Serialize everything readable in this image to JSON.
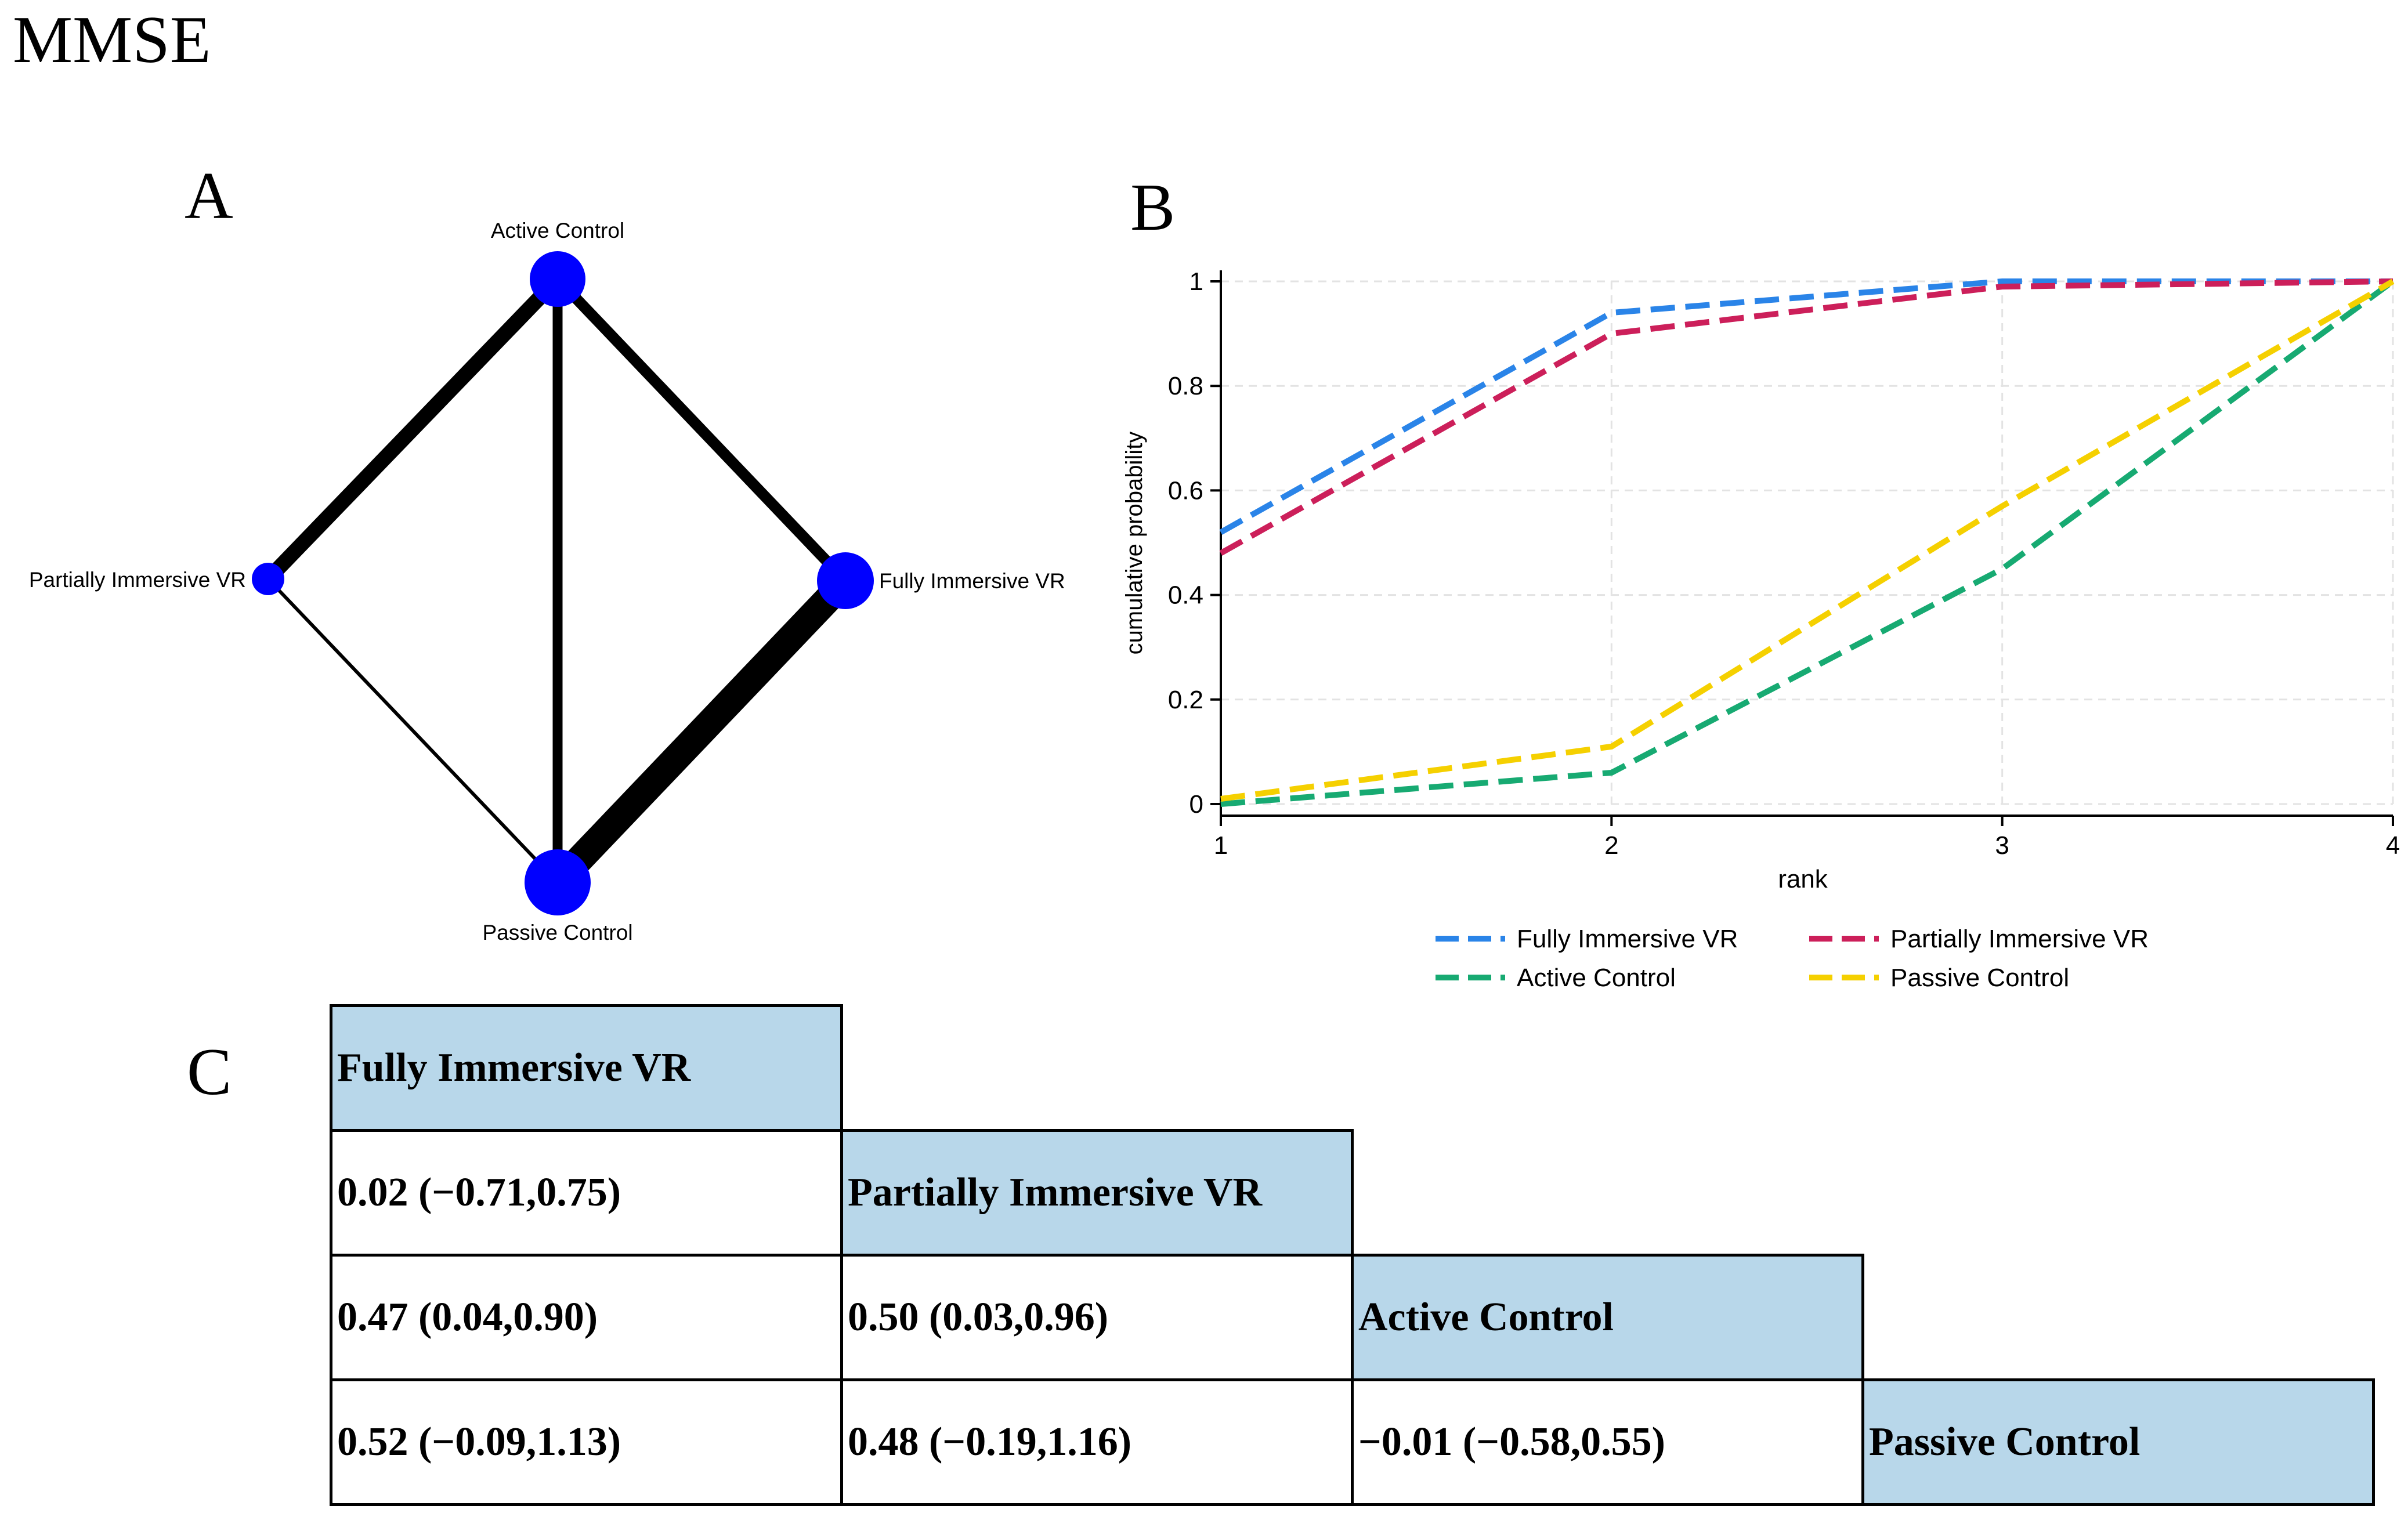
{
  "figure_title": "MMSE",
  "panels": {
    "a": "A",
    "b": "B",
    "c": "C"
  },
  "colors": {
    "node": "#0000ff",
    "edge": "#000000",
    "diag_fill": "#b8d7ea",
    "series": [
      "#2a84e8",
      "#cc1f5a",
      "#17aa72",
      "#f5d000"
    ]
  },
  "network": {
    "nodes": [
      {
        "name": "Active Control"
      },
      {
        "name": "Partially Immersive VR"
      },
      {
        "name": "Fully Immersive VR"
      },
      {
        "name": "Passive Control"
      }
    ]
  },
  "chart_data": {
    "type": "line",
    "title": "",
    "xlabel": "rank",
    "ylabel": "cumulative probability",
    "x": [
      1,
      2,
      3,
      4
    ],
    "xlim": [
      1,
      4
    ],
    "ylim": [
      0,
      1
    ],
    "xticks": [
      "1",
      "2",
      "3",
      "4"
    ],
    "yticks": [
      "0",
      "0.2",
      "0.4",
      "0.6",
      "0.8",
      "1"
    ],
    "grid": true,
    "legend_position": "bottom",
    "series": [
      {
        "name": "Fully Immersive VR",
        "values": [
          0.52,
          0.94,
          1.0,
          1.0
        ]
      },
      {
        "name": "Partially Immersive VR",
        "values": [
          0.48,
          0.9,
          0.99,
          1.0
        ]
      },
      {
        "name": "Active Control",
        "values": [
          0.0,
          0.06,
          0.45,
          1.0
        ]
      },
      {
        "name": "Passive Control",
        "values": [
          0.01,
          0.11,
          0.57,
          1.0
        ]
      }
    ]
  },
  "league_table": {
    "rows": [
      [
        "Fully Immersive VR",
        "",
        "",
        ""
      ],
      [
        "0.02 (−0.71,0.75)",
        "Partially Immersive VR",
        "",
        ""
      ],
      [
        "0.47 (0.04,0.90)",
        "0.50 (0.03,0.96)",
        "Active Control",
        ""
      ],
      [
        "0.52 (−0.09,1.13)",
        "0.48 (−0.19,1.16)",
        "−0.01 (−0.58,0.55)",
        "Passive Control"
      ]
    ]
  }
}
